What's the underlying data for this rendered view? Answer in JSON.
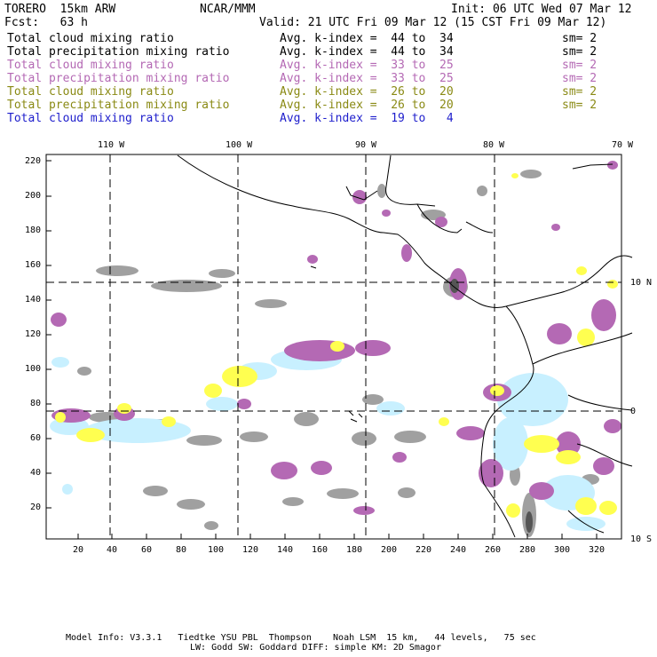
{
  "header": {
    "model": "TORERO  15km ARW",
    "org": "NCAR/MMM",
    "init": "Init: 06 UTC Wed 07 Mar 12",
    "fcst": "Fcst:   63 h",
    "valid": "Valid: 21 UTC Fri 09 Mar 12 (15 CST Fri 09 Mar 12)"
  },
  "legend": [
    {
      "name": "Total cloud mixing ratio",
      "avg": "Avg. k-index =  44 to  34",
      "sm": "sm= 2",
      "color": "#000000"
    },
    {
      "name": "Total precipitation mixing ratio",
      "avg": "Avg. k-index =  44 to  34",
      "sm": "sm= 2",
      "color": "#000000"
    },
    {
      "name": "Total cloud mixing ratio",
      "avg": "Avg. k-index =  33 to  25",
      "sm": "sm= 2",
      "color": "#b469b4"
    },
    {
      "name": "Total precipitation mixing ratio",
      "avg": "Avg. k-index =  33 to  25",
      "sm": "sm= 2",
      "color": "#b469b4"
    },
    {
      "name": "Total cloud mixing ratio",
      "avg": "Avg. k-index =  26 to  20",
      "sm": "sm= 2",
      "color": "#8a8a14"
    },
    {
      "name": "Total precipitation mixing ratio",
      "avg": "Avg. k-index =  26 to  20",
      "sm": "sm= 2",
      "color": "#8a8a14"
    },
    {
      "name": "Total cloud mixing ratio",
      "avg": "Avg. k-index =  19 to   4",
      "sm": "",
      "color": "#1e1ecc"
    }
  ],
  "map": {
    "lon_labels": [
      "110 W",
      "100 W",
      "90 W",
      "80 W",
      "70 W"
    ],
    "lat_labels": [
      "10 N",
      "0",
      "10 S"
    ],
    "y_ticks": [
      "220",
      "200",
      "180",
      "160",
      "140",
      "120",
      "100",
      "80",
      "60",
      "40",
      "20"
    ],
    "x_ticks": [
      "20",
      "40",
      "60",
      "80",
      "100",
      "120",
      "140",
      "160",
      "180",
      "200",
      "220",
      "240",
      "260",
      "280",
      "300",
      "320"
    ],
    "colors": {
      "gray": "#a0a0a0",
      "purple": "#b469b4",
      "yellow": "#ffff50",
      "lightblue": "#c8f0ff"
    }
  },
  "footer": {
    "line1": "Model Info: V3.3.1   Tiedtke YSU PBL  Thompson    Noah LSM  15 km,   44 levels,   75 sec",
    "line2": "LW: Godd SW: Goddard DIFF: simple KM: 2D Smagor"
  }
}
